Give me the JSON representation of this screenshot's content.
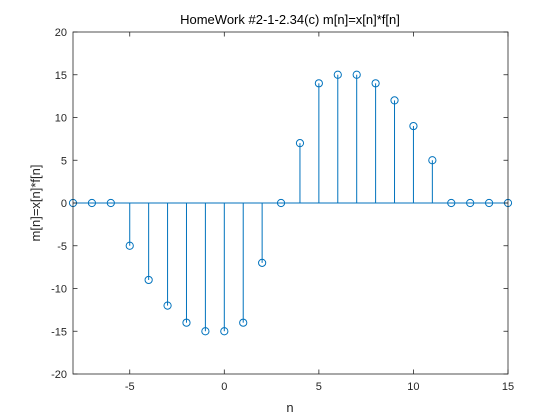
{
  "chart_data": {
    "type": "stem",
    "title": "HomeWork #2-1-2.34(c) m[n]=x[n]*f[n]",
    "xlabel": "n",
    "ylabel": "m[n]=x[n]*f[n]",
    "xlim": [
      -8,
      15
    ],
    "ylim": [
      -20,
      20
    ],
    "xticks": [
      -5,
      0,
      5,
      10,
      15
    ],
    "yticks": [
      -20,
      -15,
      -10,
      -5,
      0,
      5,
      10,
      15,
      20
    ],
    "grid": false,
    "color": "#0072BD",
    "x": [
      -8,
      -7,
      -6,
      -5,
      -4,
      -3,
      -2,
      -1,
      0,
      1,
      2,
      3,
      4,
      5,
      6,
      7,
      8,
      9,
      10,
      11,
      12,
      13,
      14,
      15
    ],
    "y": [
      0,
      0,
      0,
      -5,
      -9,
      -12,
      -14,
      -15,
      -15,
      -14,
      -7,
      0,
      7,
      14,
      15,
      15,
      14,
      12,
      9,
      5,
      0,
      0,
      0,
      0
    ]
  }
}
